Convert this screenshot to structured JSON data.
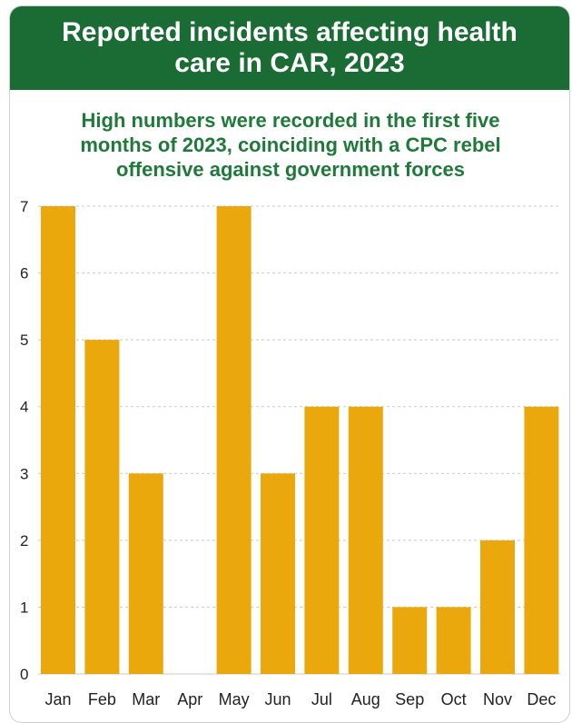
{
  "header": {
    "title_line1": "Reported incidents affecting health",
    "title_line2": "care in CAR, 2023"
  },
  "subtitle": {
    "line1": "High numbers were recorded in the first five",
    "line2": "months of 2023, coinciding with a CPC rebel",
    "line3": "offensive against government forces"
  },
  "colors": {
    "header_bg": "#1a6b34",
    "subtitle_text": "#1f7a3a",
    "bar": "#eaa80d",
    "gridline": "#c8c8c8"
  },
  "chart_data": {
    "type": "bar",
    "categories": [
      "Jan",
      "Feb",
      "Mar",
      "Apr",
      "May",
      "Jun",
      "Jul",
      "Aug",
      "Sep",
      "Oct",
      "Nov",
      "Dec"
    ],
    "values": [
      7,
      5,
      3,
      0,
      7,
      3,
      4,
      4,
      1,
      1,
      2,
      4
    ],
    "title": "Reported incidents affecting health care in CAR, 2023",
    "subtitle": "High numbers were recorded in the first five months of 2023, coinciding with a CPC rebel offensive against government forces",
    "xlabel": "",
    "ylabel": "",
    "ylim": [
      0,
      7
    ],
    "yticks": [
      "0",
      "1",
      "2",
      "3",
      "4",
      "5",
      "6",
      "7"
    ],
    "grid": "horizontal dotted",
    "legend": "none"
  }
}
